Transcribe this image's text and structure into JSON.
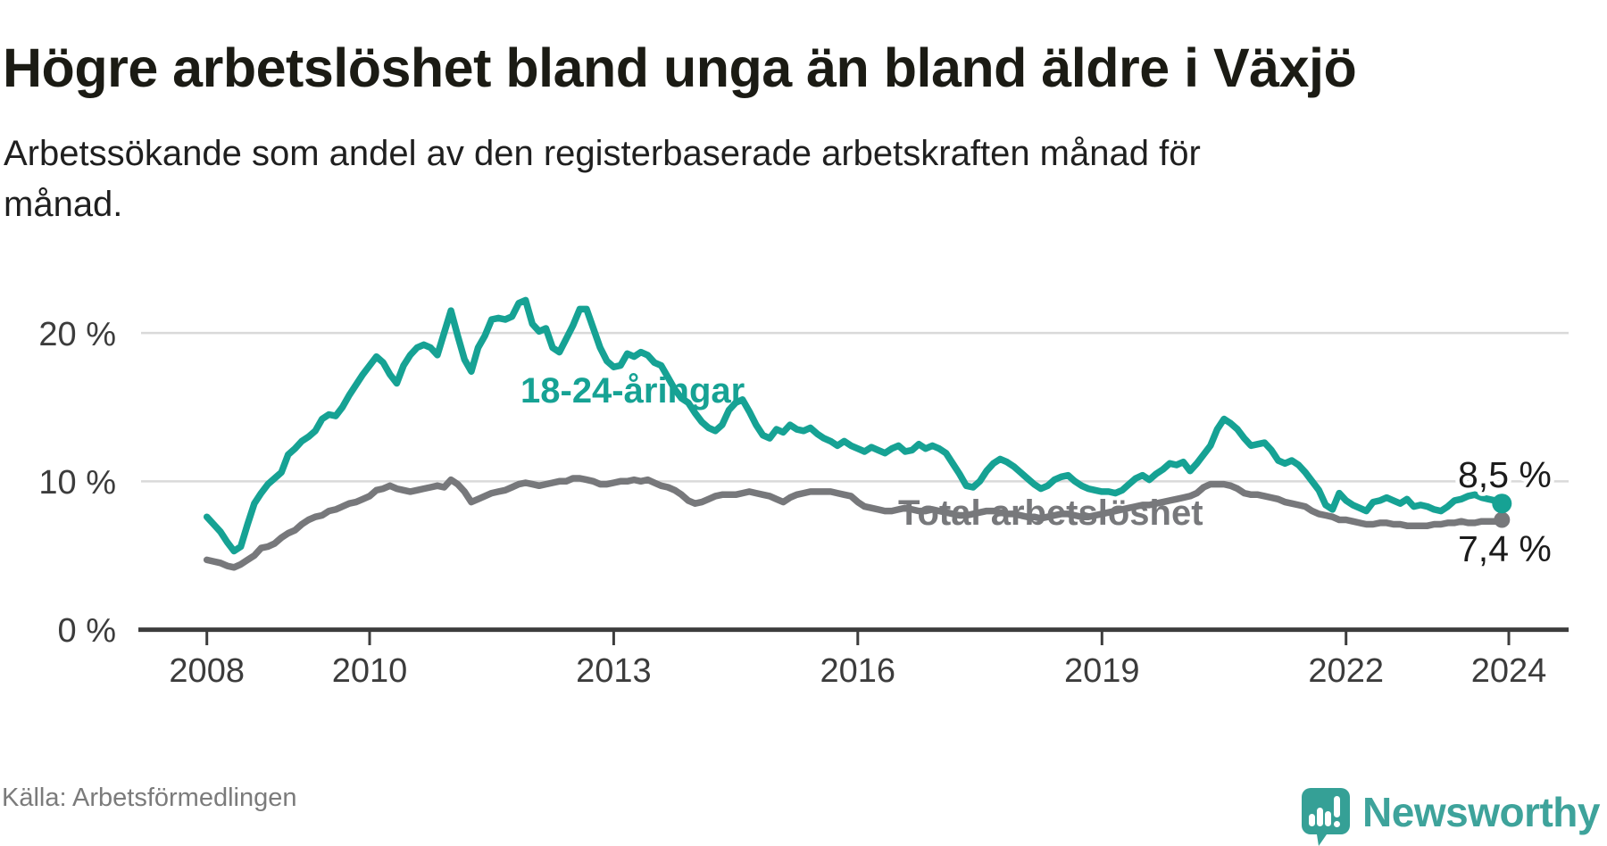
{
  "header": {
    "title": "Högre arbetslöshet bland unga än bland äldre i Växjö",
    "subtitle": "Arbetssökande som andel av den registerbaserade arbetskraften månad för månad."
  },
  "footer": {
    "source": "Källa: Arbetsförmedlingen",
    "brand_name": "Newsworthy",
    "brand_icon": "newsworthy-speech-bubble-chart-icon"
  },
  "colors": {
    "young_series": "#16a294",
    "total_series": "#77787b",
    "gridline": "#d9d9d9",
    "axis": "#3d3d3d",
    "brand_teal": "#3ea39b"
  },
  "chart_data": {
    "type": "line",
    "title": "Högre arbetslöshet bland unga än bland äldre i Växjö",
    "subtitle": "Arbetssökande som andel av den registerbaserade arbetskraften månad för månad.",
    "unit": "%",
    "frequency": "monthly",
    "x_start": "2008-01",
    "x_end": "2023-12",
    "ylim": [
      0,
      24
    ],
    "grid": "horizontal",
    "legend_position": "inline-labels",
    "x_ticks": [
      {
        "label": "2008"
      },
      {
        "label": "2010"
      },
      {
        "label": "2013"
      },
      {
        "label": "2016"
      },
      {
        "label": "2019"
      },
      {
        "label": "2022"
      },
      {
        "label": "2024"
      }
    ],
    "y_ticks": [
      {
        "value": 0,
        "label": "0 %"
      },
      {
        "value": 10,
        "label": "10 %"
      },
      {
        "value": 20,
        "label": "20 %"
      }
    ],
    "series": [
      {
        "name": "18-24-åringar",
        "color": "#16a294",
        "end_label": "8,5 %",
        "end_value": 8.5,
        "values": [
          7.6,
          7.1,
          6.6,
          5.9,
          5.3,
          5.6,
          7.1,
          8.5,
          9.2,
          9.8,
          10.2,
          10.6,
          11.8,
          12.2,
          12.7,
          13.0,
          13.4,
          14.2,
          14.5,
          14.4,
          15.0,
          15.8,
          16.5,
          17.2,
          17.8,
          18.4,
          18.0,
          17.2,
          16.6,
          17.8,
          18.5,
          19.0,
          19.2,
          19.0,
          18.5,
          20.0,
          21.5,
          19.8,
          18.2,
          17.4,
          19.0,
          19.8,
          20.9,
          21.0,
          20.9,
          21.1,
          22.0,
          22.2,
          20.6,
          20.1,
          20.3,
          19.0,
          18.7,
          19.6,
          20.5,
          21.6,
          21.6,
          20.3,
          19.0,
          18.1,
          17.7,
          17.8,
          18.6,
          18.4,
          18.7,
          18.5,
          18.0,
          17.8,
          17.0,
          16.2,
          15.6,
          15.3,
          14.6,
          14.0,
          13.6,
          13.4,
          13.8,
          14.8,
          15.3,
          15.5,
          14.7,
          13.8,
          13.1,
          12.9,
          13.5,
          13.3,
          13.8,
          13.5,
          13.4,
          13.6,
          13.2,
          12.9,
          12.7,
          12.4,
          12.7,
          12.4,
          12.2,
          12.0,
          12.3,
          12.1,
          11.9,
          12.2,
          12.4,
          12.0,
          12.1,
          12.5,
          12.2,
          12.4,
          12.2,
          11.9,
          11.2,
          10.5,
          9.7,
          9.6,
          10.0,
          10.7,
          11.2,
          11.5,
          11.3,
          11.0,
          10.6,
          10.2,
          9.8,
          9.5,
          9.7,
          10.1,
          10.3,
          10.4,
          10.0,
          9.7,
          9.5,
          9.4,
          9.3,
          9.3,
          9.2,
          9.4,
          9.8,
          10.2,
          10.4,
          10.1,
          10.5,
          10.8,
          11.2,
          11.1,
          11.3,
          10.7,
          11.2,
          11.8,
          12.4,
          13.5,
          14.2,
          13.9,
          13.5,
          12.9,
          12.4,
          12.5,
          12.6,
          12.1,
          11.4,
          11.2,
          11.4,
          11.1,
          10.6,
          10.0,
          9.4,
          8.4,
          8.1,
          9.2,
          8.7,
          8.4,
          8.2,
          8.0,
          8.6,
          8.7,
          8.9,
          8.7,
          8.5,
          8.8,
          8.3,
          8.4,
          8.3,
          8.1,
          8.0,
          8.3,
          8.7,
          8.8,
          9.0,
          9.1,
          8.9,
          8.8,
          8.7,
          8.5
        ]
      },
      {
        "name": "Total arbetslöshet",
        "color": "#77787b",
        "end_label": "7,4 %",
        "end_value": 7.4,
        "values": [
          4.7,
          4.6,
          4.5,
          4.3,
          4.2,
          4.4,
          4.7,
          5.0,
          5.5,
          5.6,
          5.8,
          6.2,
          6.5,
          6.7,
          7.1,
          7.4,
          7.6,
          7.7,
          8.0,
          8.1,
          8.3,
          8.5,
          8.6,
          8.8,
          9.0,
          9.4,
          9.5,
          9.7,
          9.5,
          9.4,
          9.3,
          9.4,
          9.5,
          9.6,
          9.7,
          9.6,
          10.1,
          9.8,
          9.3,
          8.6,
          8.8,
          9.0,
          9.2,
          9.3,
          9.4,
          9.6,
          9.8,
          9.9,
          9.8,
          9.7,
          9.8,
          9.9,
          10.0,
          10.0,
          10.2,
          10.2,
          10.1,
          10.0,
          9.8,
          9.8,
          9.9,
          10.0,
          10.0,
          10.1,
          10.0,
          10.1,
          9.9,
          9.7,
          9.6,
          9.4,
          9.1,
          8.7,
          8.5,
          8.6,
          8.8,
          9.0,
          9.1,
          9.1,
          9.1,
          9.2,
          9.3,
          9.2,
          9.1,
          9.0,
          8.8,
          8.6,
          8.9,
          9.1,
          9.2,
          9.3,
          9.3,
          9.3,
          9.3,
          9.2,
          9.1,
          9.0,
          8.6,
          8.3,
          8.2,
          8.1,
          8.0,
          8.0,
          8.1,
          8.2,
          8.1,
          8.0,
          8.0,
          8.1,
          8.0,
          7.9,
          7.8,
          7.7,
          7.7,
          7.8,
          7.9,
          8.0,
          8.0,
          7.9,
          7.8,
          7.8,
          7.7,
          7.6,
          7.6,
          7.5,
          7.6,
          7.7,
          7.8,
          7.8,
          7.7,
          7.6,
          7.6,
          7.7,
          7.8,
          7.9,
          8.0,
          8.1,
          8.2,
          8.3,
          8.4,
          8.4,
          8.5,
          8.6,
          8.7,
          8.8,
          8.9,
          9.0,
          9.2,
          9.6,
          9.8,
          9.8,
          9.8,
          9.7,
          9.5,
          9.2,
          9.1,
          9.1,
          9.0,
          8.9,
          8.8,
          8.6,
          8.5,
          8.4,
          8.3,
          8.0,
          7.8,
          7.7,
          7.6,
          7.4,
          7.4,
          7.3,
          7.2,
          7.1,
          7.1,
          7.2,
          7.2,
          7.1,
          7.1,
          7.0,
          7.0,
          7.0,
          7.0,
          7.1,
          7.1,
          7.2,
          7.2,
          7.3,
          7.2,
          7.2,
          7.3,
          7.3,
          7.3,
          7.4
        ]
      }
    ]
  }
}
